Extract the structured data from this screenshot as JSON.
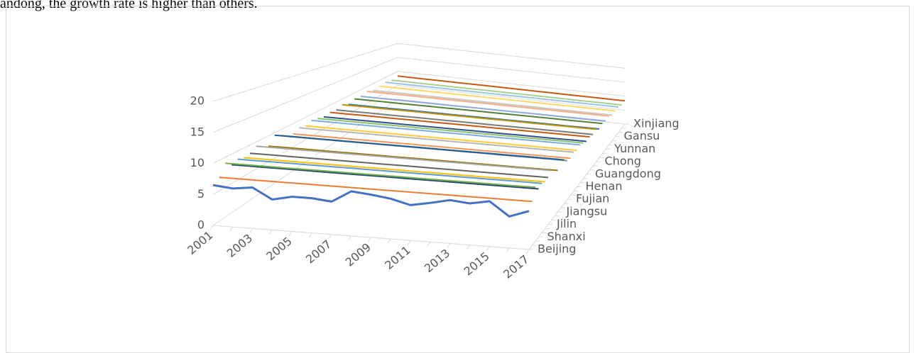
{
  "text": "andong, the growth rate is higher than others.",
  "chart_data": {
    "type": "line3d",
    "categories": [
      "2001",
      null,
      "2003",
      null,
      "2005",
      null,
      "2007",
      null,
      "2009",
      null,
      "2011",
      null,
      "2013",
      null,
      "2015",
      null,
      "2017"
    ],
    "ylim": [
      0,
      20
    ],
    "yticks": [
      0,
      5,
      10,
      15,
      20
    ],
    "grid": true,
    "series": [
      {
        "name": "Beijing",
        "color": "#4472c4",
        "values": [
          6.5,
          6.2,
          6.6,
          4.9,
          5.6,
          5.6,
          5.3,
          7.2,
          6.9,
          6.5,
          5.7,
          6.3,
          7.0,
          6.7,
          7.3,
          5.1,
          6.2
        ]
      },
      {
        "color": "#ed7d31",
        "values": [
          7.2,
          7.2,
          7.2,
          7.2,
          7.2,
          7.2,
          7.2,
          7.2,
          7.2,
          7.2,
          7.2,
          7.2,
          7.2,
          7.2,
          7.2,
          7.2,
          7.2
        ]
      },
      {
        "color": "#70ad47",
        "values": [
          9.0,
          9.0,
          9.0,
          9.0,
          9.0,
          9.0,
          9.0,
          9.0,
          9.0,
          9.0,
          9.0,
          9.0,
          9.0,
          9.0,
          9.0,
          9.0,
          9.0
        ]
      },
      {
        "name": "Shanxi",
        "color": "#264478",
        "values": [
          8.2,
          8.2,
          8.2,
          8.2,
          8.2,
          8.2,
          8.2,
          8.2,
          8.2,
          8.2,
          8.2,
          8.2,
          8.2,
          8.2,
          8.2,
          8.2,
          8.2
        ]
      },
      {
        "color": "#5b9bd5",
        "values": [
          8.6,
          8.6,
          8.6,
          8.6,
          8.6,
          8.6,
          8.6,
          8.6,
          8.6,
          8.6,
          8.6,
          8.6,
          8.6,
          8.6,
          8.6,
          8.6,
          8.6
        ]
      },
      {
        "color": "#ffc000",
        "values": [
          8.3,
          8.3,
          8.3,
          8.3,
          8.3,
          8.3,
          8.3,
          8.3,
          8.3,
          8.3,
          8.3,
          8.3,
          8.3,
          8.3,
          8.3,
          8.3,
          8.3
        ]
      },
      {
        "name": "Jilin",
        "color": "#636363",
        "values": [
          8.5,
          8.5,
          8.5,
          8.5,
          8.5,
          8.5,
          8.5,
          8.5,
          8.5,
          8.5,
          8.5,
          8.5,
          8.5,
          8.5,
          8.5,
          8.5,
          8.5
        ]
      },
      {
        "color": "#a5a5a5",
        "values": [
          9.2,
          9.2,
          9.2,
          9.2,
          9.2,
          9.2,
          9.2,
          9.2,
          9.2,
          9.2,
          9.2,
          9.2,
          9.2,
          9.2,
          9.2,
          9.2,
          9.2
        ]
      },
      {
        "color": "#ffffff",
        "values": [
          7.5,
          7.5,
          7.5,
          7.5,
          7.5,
          7.5,
          7.5,
          7.5,
          7.5,
          7.5,
          7.5,
          7.5,
          7.5,
          7.5,
          7.5,
          7.5,
          7.5
        ]
      },
      {
        "name": "Jiangsu",
        "color": "#997300",
        "values": [
          8.0,
          8.0,
          8.0,
          8.0,
          8.0,
          8.0,
          8.0,
          8.0,
          8.0,
          8.0,
          8.0,
          8.0,
          8.0,
          8.0,
          8.0,
          8.0,
          8.0
        ]
      },
      {
        "color": "#255e91",
        "values": [
          9.5,
          9.5,
          9.5,
          9.5,
          9.5,
          9.5,
          9.5,
          9.5,
          9.5,
          9.5,
          9.5,
          9.5,
          9.5,
          9.5,
          9.5,
          9.5,
          9.5
        ]
      },
      {
        "color": "#43682b",
        "values": [
          8.8,
          8.8,
          8.8,
          8.8,
          8.8,
          8.8,
          8.8,
          8.8,
          8.8,
          8.8,
          8.8,
          8.8,
          8.8,
          8.8,
          8.8,
          8.8,
          8.8
        ]
      },
      {
        "name": "Fujian",
        "color": "#698ed0",
        "values": [
          8.0,
          8.0,
          8.0,
          8.0,
          8.0,
          8.0,
          8.0,
          8.0,
          8.0,
          8.0,
          8.0,
          8.0,
          8.0,
          8.0,
          8.0,
          8.0,
          8.0
        ]
      },
      {
        "color": "#f1975a",
        "values": [
          7.8,
          7.8,
          7.8,
          7.8,
          7.8,
          7.8,
          7.8,
          7.8,
          7.8,
          7.8,
          7.8,
          7.8,
          7.8,
          7.8,
          7.8,
          7.8,
          7.8
        ]
      },
      {
        "color": "#b7b7b7",
        "values": [
          8.4,
          8.4,
          8.4,
          8.4,
          8.4,
          8.4,
          8.4,
          8.4,
          8.4,
          8.4,
          8.4,
          8.4,
          8.4,
          8.4,
          8.4,
          8.4,
          8.4
        ]
      },
      {
        "name": "Henan",
        "color": "#ffcd33",
        "values": [
          8.1,
          8.1,
          8.1,
          8.1,
          8.1,
          8.1,
          8.1,
          8.1,
          8.1,
          8.1,
          8.1,
          8.1,
          8.1,
          8.1,
          8.1,
          8.1,
          8.1
        ]
      },
      {
        "color": "#7cafdd",
        "values": [
          8.6,
          8.6,
          8.6,
          8.6,
          8.6,
          8.6,
          8.6,
          8.6,
          8.6,
          8.6,
          8.6,
          8.6,
          8.6,
          8.6,
          8.6,
          8.6,
          8.6
        ]
      },
      {
        "color": "#8cc168",
        "values": [
          8.3,
          8.3,
          8.3,
          8.3,
          8.3,
          8.3,
          8.3,
          8.3,
          8.3,
          8.3,
          8.3,
          8.3,
          8.3,
          8.3,
          8.3,
          8.3,
          8.3
        ]
      },
      {
        "name": "Guangdong",
        "color": "#2f528f",
        "values": [
          7.9,
          7.9,
          7.9,
          7.9,
          7.9,
          7.9,
          7.9,
          7.9,
          7.9,
          7.9,
          7.9,
          7.9,
          7.9,
          7.9,
          7.9,
          7.9,
          7.9
        ]
      },
      {
        "color": "#c55a11",
        "values": [
          8.2,
          8.2,
          8.2,
          8.2,
          8.2,
          8.2,
          8.2,
          8.2,
          8.2,
          8.2,
          8.2,
          8.2,
          8.2,
          8.2,
          8.2,
          8.2,
          8.2
        ]
      },
      {
        "color": "#7b7b7b",
        "values": [
          8.0,
          8.0,
          8.0,
          8.0,
          8.0,
          8.0,
          8.0,
          8.0,
          8.0,
          8.0,
          8.0,
          8.0,
          8.0,
          8.0,
          8.0,
          8.0,
          8.0
        ]
      },
      {
        "name": "Chong",
        "color": "#bf9000",
        "values": [
          8.5,
          8.5,
          8.5,
          8.5,
          8.5,
          8.5,
          8.5,
          8.5,
          8.5,
          8.5,
          8.5,
          8.5,
          8.5,
          8.5,
          8.5,
          8.5,
          8.5
        ]
      },
      {
        "color": "#2e75b6",
        "values": [
          7.7,
          7.7,
          7.7,
          7.7,
          7.7,
          7.7,
          7.7,
          7.7,
          7.7,
          7.7,
          7.7,
          7.7,
          7.7,
          7.7,
          7.7,
          7.7,
          7.7
        ]
      },
      {
        "color": "#548235",
        "values": [
          8.3,
          8.3,
          8.3,
          8.3,
          8.3,
          8.3,
          8.3,
          8.3,
          8.3,
          8.3,
          8.3,
          8.3,
          8.3,
          8.3,
          8.3,
          8.3,
          8.3
        ]
      },
      {
        "name": "Yunnan",
        "color": "#8faadc",
        "values": [
          8.1,
          8.1,
          8.1,
          8.1,
          8.1,
          8.1,
          8.1,
          8.1,
          8.1,
          8.1,
          8.1,
          8.1,
          8.1,
          8.1,
          8.1,
          8.1,
          8.1
        ]
      },
      {
        "color": "#f4b183",
        "values": [
          8.6,
          8.6,
          8.6,
          8.6,
          8.6,
          8.6,
          8.6,
          8.6,
          8.6,
          8.6,
          8.6,
          8.6,
          8.6,
          8.6,
          8.6,
          8.6,
          8.6
        ]
      },
      {
        "color": "#c9c9c9",
        "values": [
          7.9,
          7.9,
          7.9,
          7.9,
          7.9,
          7.9,
          7.9,
          7.9,
          7.9,
          7.9,
          7.9,
          7.9,
          7.9,
          7.9,
          7.9,
          7.9,
          7.9
        ]
      },
      {
        "name": "Gansu",
        "color": "#ffd966",
        "values": [
          8.2,
          8.2,
          8.2,
          8.2,
          8.2,
          8.2,
          8.2,
          8.2,
          8.2,
          8.2,
          8.2,
          8.2,
          8.2,
          8.2,
          8.2,
          8.2,
          8.2
        ]
      },
      {
        "color": "#9dc3e6",
        "values": [
          8.4,
          8.4,
          8.4,
          8.4,
          8.4,
          8.4,
          8.4,
          8.4,
          8.4,
          8.4,
          8.4,
          8.4,
          8.4,
          8.4,
          8.4,
          8.4,
          8.4
        ]
      },
      {
        "color": "#a9d18e",
        "values": [
          8.0,
          8.0,
          8.0,
          8.0,
          8.0,
          8.0,
          8.0,
          8.0,
          8.0,
          8.0,
          8.0,
          8.0,
          8.0,
          8.0,
          8.0,
          8.0,
          8.0
        ]
      },
      {
        "name": "Xinjiang",
        "color": "#c55a11",
        "values": [
          8.3,
          8.3,
          8.3,
          8.3,
          8.3,
          8.3,
          8.3,
          8.3,
          8.3,
          8.3,
          8.3,
          8.3,
          8.3,
          8.3,
          8.3,
          8.3,
          8.3
        ]
      }
    ]
  }
}
